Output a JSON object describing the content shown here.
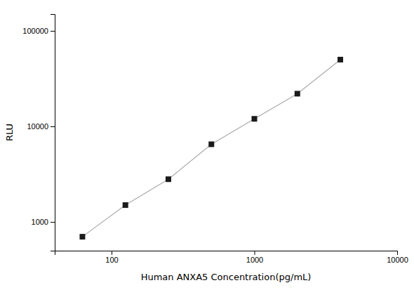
{
  "chart_data": {
    "type": "line",
    "xlabel": "Human ANXA5 Concentration(pg/mL)",
    "ylabel": "RLU",
    "x": [
      62.5,
      125,
      250,
      500,
      1000,
      2000,
      4000
    ],
    "series": [
      {
        "type": "line",
        "color": "#aaaaaa",
        "line_style": "solid",
        "values": [
          700,
          1500,
          2800,
          6500,
          12000,
          22000,
          50000
        ]
      },
      {
        "type": "scatter",
        "color": "#1a1a1a",
        "marker": "square",
        "values": [
          700,
          1500,
          2800,
          6500,
          12000,
          22000,
          50000
        ]
      }
    ],
    "xlim": [
      40,
      10000
    ],
    "ylim": [
      500,
      150000
    ],
    "xticks": [
      100,
      1000,
      10000
    ],
    "yticks": [
      1000,
      10000,
      100000
    ],
    "log": true,
    "grid": false
  }
}
